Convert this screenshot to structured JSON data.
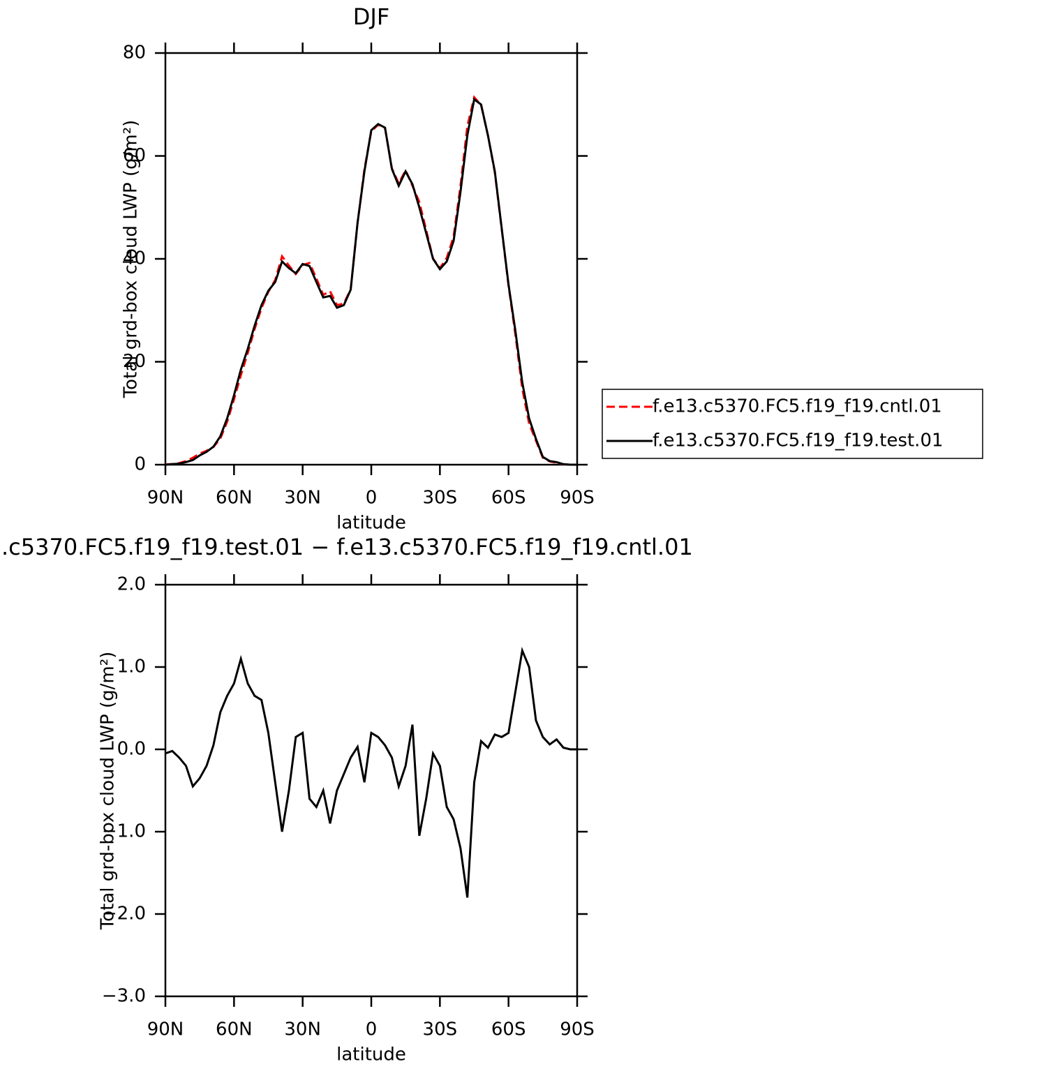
{
  "chart_data": [
    {
      "type": "line",
      "title": "DJF",
      "xlabel": "latitude",
      "ylabel": "Total grd-box cloud LWP (g/m²)",
      "x": [
        90,
        87,
        84,
        81,
        78,
        75,
        72,
        69,
        66,
        63,
        60,
        57,
        54,
        51,
        48,
        45,
        42,
        39,
        36,
        33,
        30,
        27,
        24,
        21,
        18,
        15,
        12,
        9,
        6,
        3,
        0,
        -3,
        -6,
        -9,
        -12,
        -15,
        -18,
        -21,
        -24,
        -27,
        -30,
        -33,
        -36,
        -39,
        -42,
        -45,
        -48,
        -51,
        -54,
        -57,
        -60,
        -63,
        -66,
        -69,
        -72,
        -75,
        -78,
        -81,
        -84,
        -87,
        -90
      ],
      "series": [
        {
          "name": "f.e13.c5370.FC5.f19_f19.cntl.01",
          "color": "#ff0000",
          "style": "dashed",
          "values": [
            0.05,
            0.12,
            0.3,
            0.7,
            1.35,
            2.15,
            2.7,
            3.45,
            5.05,
            8.35,
            12.7,
            17.4,
            21.7,
            26.35,
            30.4,
            33.6,
            35.9,
            40.5,
            38.7,
            37.05,
            38.8,
            39.2,
            36.2,
            33.0,
            33.7,
            31.0,
            31.3,
            34.1,
            46.97,
            57.4,
            64.8,
            66.05,
            65.45,
            57.6,
            54.65,
            57.2,
            54.2,
            51.05,
            45.6,
            40.05,
            38.2,
            40.2,
            44.35,
            54.2,
            65.8,
            71.4,
            69.9,
            63.98,
            56.82,
            45.85,
            34.8,
            25.3,
            14.8,
            8.0,
            4.65,
            1.35,
            0.64,
            0.38,
            0.08,
            0,
            0
          ]
        },
        {
          "name": "f.e13.c5370.FC5.f19_f19.test.01",
          "color": "#000000",
          "style": "solid",
          "values": [
            0,
            0.1,
            0.2,
            0.5,
            0.9,
            1.8,
            2.5,
            3.5,
            5.5,
            9,
            13.5,
            18.5,
            22.5,
            27,
            31,
            33.8,
            35.5,
            39.5,
            38.2,
            37.2,
            39,
            38.6,
            35.5,
            32.5,
            32.8,
            30.5,
            31,
            34,
            47,
            57,
            65,
            66.2,
            65.5,
            57.5,
            54.2,
            57,
            54.5,
            50,
            45,
            40,
            38,
            39.5,
            43.5,
            53,
            64,
            71,
            70,
            64,
            57,
            46,
            35,
            26,
            16,
            9,
            5,
            1.5,
            0.7,
            0.5,
            0.1,
            0,
            0
          ]
        }
      ],
      "xlim": [
        90,
        -90
      ],
      "xticks": [
        {
          "value": 90,
          "label": "90N"
        },
        {
          "value": 60,
          "label": "60N"
        },
        {
          "value": 30,
          "label": "30N"
        },
        0,
        {
          "value": -30,
          "label": "30S"
        },
        {
          "value": -60,
          "label": "60S"
        },
        {
          "value": -90,
          "label": "90S"
        }
      ],
      "ylim": [
        0,
        80
      ],
      "yticks": [
        0,
        20,
        40,
        60,
        80
      ],
      "legend": "outside-right"
    },
    {
      "type": "line",
      "title": ".c5370.FC5.f19_f19.test.01 − f.e13.c5370.FC5.f19_f19.cntl.01",
      "xlabel": "latitude",
      "ylabel": "Total grd-box cloud LWP (g/m²)",
      "x": [
        90,
        87,
        84,
        81,
        78,
        75,
        72,
        69,
        66,
        63,
        60,
        57,
        54,
        51,
        48,
        45,
        42,
        39,
        36,
        33,
        30,
        27,
        24,
        21,
        18,
        15,
        12,
        9,
        6,
        3,
        0,
        -3,
        -6,
        -9,
        -12,
        -15,
        -18,
        -21,
        -24,
        -27,
        -30,
        -33,
        -36,
        -39,
        -42,
        -45,
        -48,
        -51,
        -54,
        -57,
        -60,
        -63,
        -66,
        -69,
        -72,
        -75,
        -78,
        -81,
        -84,
        -87,
        -90
      ],
      "series": [
        {
          "color": "#000000",
          "style": "solid",
          "values": [
            -0.05,
            -0.02,
            -0.1,
            -0.2,
            -0.45,
            -0.35,
            -0.2,
            0.05,
            0.45,
            0.65,
            0.8,
            1.1,
            0.8,
            0.65,
            0.6,
            0.2,
            -0.4,
            -1.0,
            -0.5,
            0.15,
            0.2,
            -0.6,
            -0.7,
            -0.5,
            -0.9,
            -0.5,
            -0.3,
            -0.1,
            0.03,
            -0.4,
            0.2,
            0.15,
            0.05,
            -0.1,
            -0.45,
            -0.2,
            0.3,
            -1.05,
            -0.6,
            -0.05,
            -0.2,
            -0.7,
            -0.85,
            -1.2,
            -1.8,
            -0.4,
            0.1,
            0.02,
            0.18,
            0.15,
            0.2,
            0.7,
            1.2,
            1.0,
            0.35,
            0.15,
            0.06,
            0.12,
            0.02,
            0,
            0
          ]
        }
      ],
      "xlim": [
        90,
        -90
      ],
      "xticks": [
        {
          "value": 90,
          "label": "90N"
        },
        {
          "value": 60,
          "label": "60N"
        },
        {
          "value": 30,
          "label": "30N"
        },
        0,
        {
          "value": -30,
          "label": "30S"
        },
        {
          "value": -60,
          "label": "60S"
        },
        {
          "value": -90,
          "label": "90S"
        }
      ],
      "ylim": [
        -3,
        2
      ],
      "yticks": [
        {
          "value": -3,
          "label": "−3.0"
        },
        {
          "value": -2,
          "label": "−2.0"
        },
        {
          "value": -1,
          "label": "−1.0"
        },
        {
          "value": 0,
          "label": "0.0"
        },
        {
          "value": 1,
          "label": "1.0"
        },
        {
          "value": 2,
          "label": "2.0"
        }
      ]
    }
  ]
}
